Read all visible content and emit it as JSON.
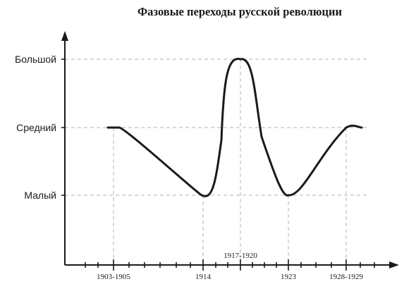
{
  "chart_data": {
    "type": "line",
    "title": "Фазовые переходы русской революции",
    "xlabel": "",
    "ylabel": "",
    "x_ticks": [
      "1903-1905",
      "1914",
      "1917-1920",
      "1923",
      "1928-1929"
    ],
    "y_levels": [
      "Малый",
      "Средний",
      "Большой"
    ],
    "y_values": [
      1,
      2,
      3
    ],
    "ylim": [
      0,
      3.5
    ],
    "grid": true,
    "series": [
      {
        "x": [
          "1903-1905",
          "1914",
          "1917-1920",
          "1923",
          "1928-1929"
        ],
        "values": [
          2,
          1,
          3,
          1,
          2
        ]
      }
    ]
  }
}
